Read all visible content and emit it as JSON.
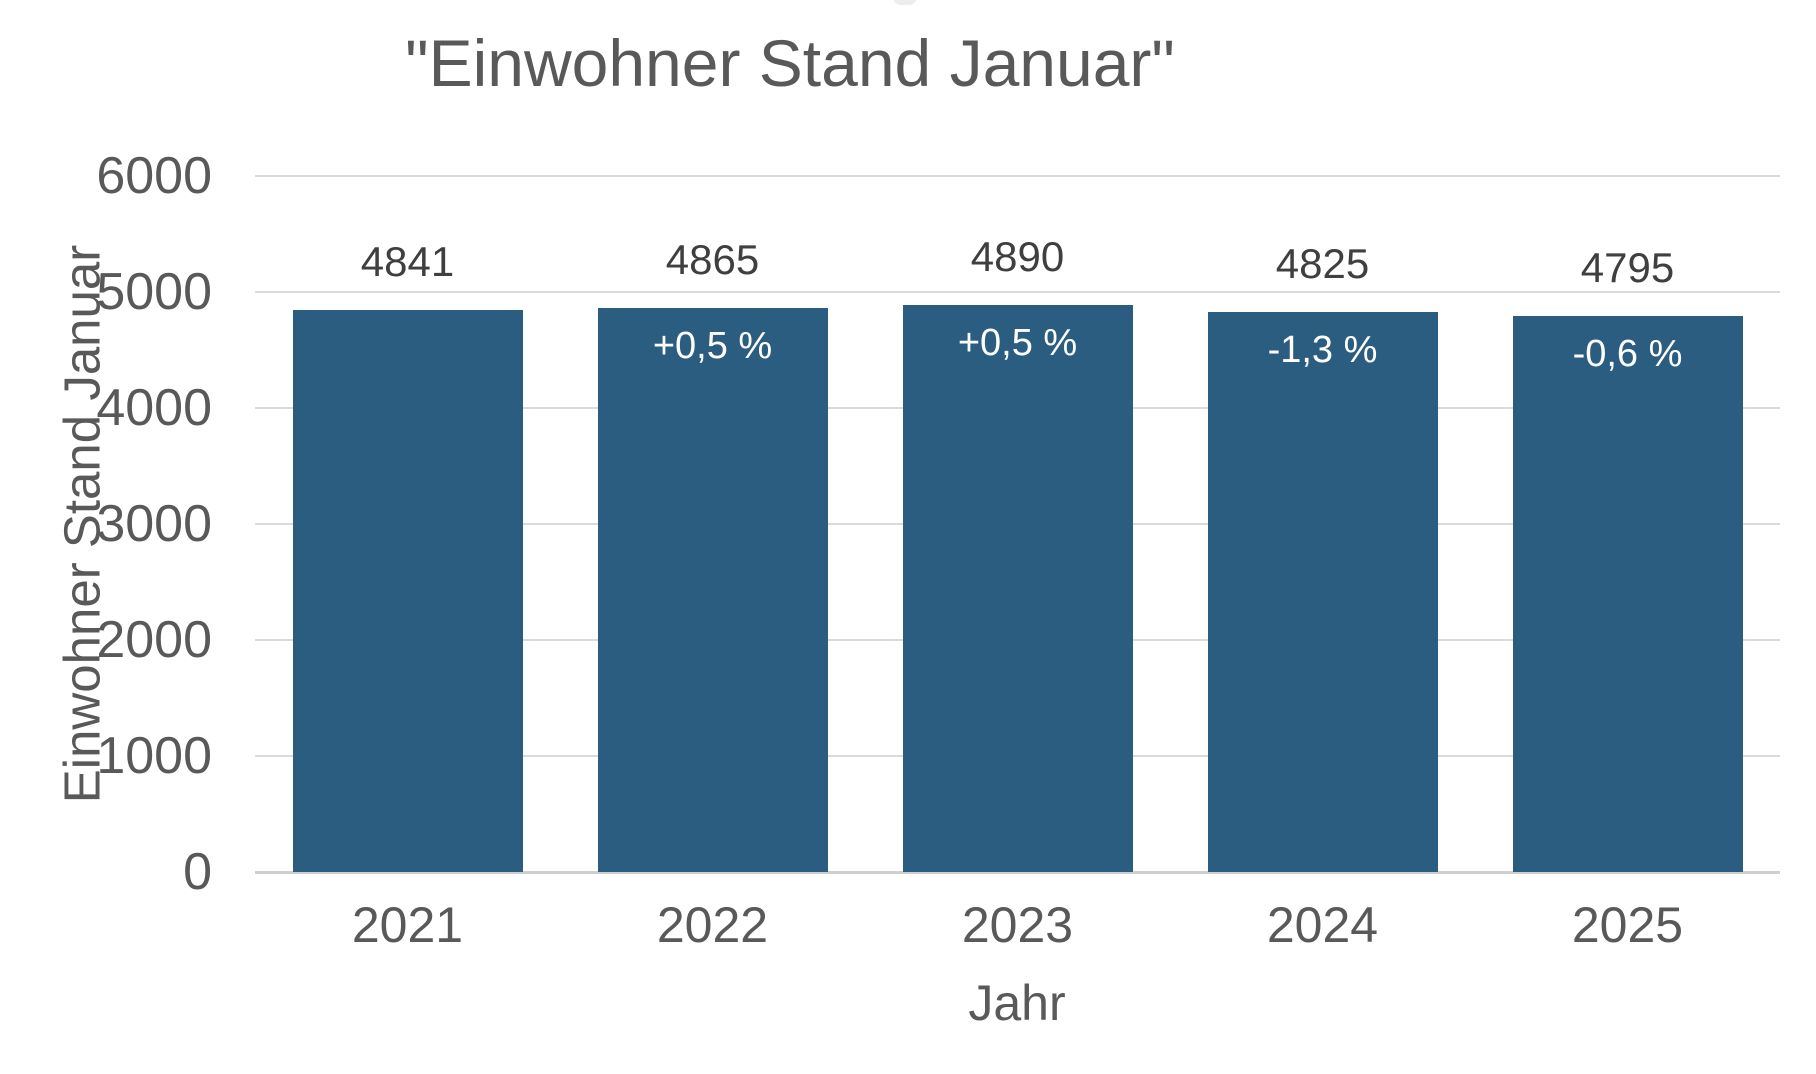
{
  "chart_data": {
    "type": "bar",
    "title": "\"Einwohner Stand Januar\"",
    "xlabel": "Jahr",
    "ylabel": "Einwohner Stand Januar",
    "categories": [
      "2021",
      "2022",
      "2023",
      "2024",
      "2025"
    ],
    "values": [
      4841,
      4865,
      4890,
      4825,
      4795
    ],
    "value_labels": [
      "4841",
      "4865",
      "4890",
      "4825",
      "4795"
    ],
    "pct_change_labels": [
      "",
      "+0,5 %",
      "+0,5 %",
      "-1,3 %",
      "-0,6 %"
    ],
    "ylim": [
      0,
      6000
    ],
    "ytick_interval": 1000,
    "ytick_labels": [
      "0",
      "1000",
      "2000",
      "3000",
      "4000",
      "5000",
      "6000"
    ],
    "grid": true,
    "legend": false,
    "colors": {
      "bar": "#2B5D80",
      "value_label_text": "#3F3F3F",
      "pct_label_text": "#FFFFFF",
      "axis_text": "#595959",
      "gridline": "#DADADA",
      "axis_line": "#CFCFCF",
      "background": "#FFFFFF"
    }
  }
}
